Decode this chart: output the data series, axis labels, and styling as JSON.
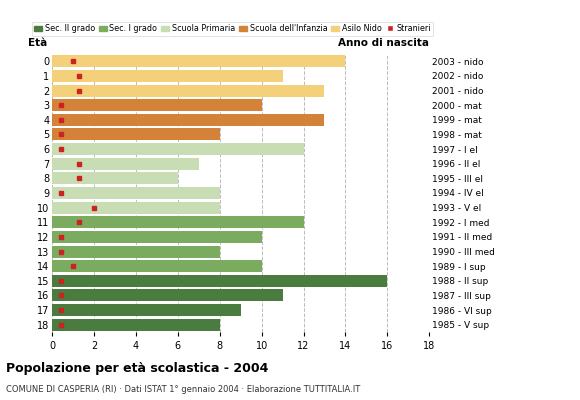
{
  "ages": [
    0,
    1,
    2,
    3,
    4,
    5,
    6,
    7,
    8,
    9,
    10,
    11,
    12,
    13,
    14,
    15,
    16,
    17,
    18
  ],
  "years": [
    "2003 - nido",
    "2002 - nido",
    "2001 - nido",
    "2000 - mat",
    "1999 - mat",
    "1998 - mat",
    "1997 - I el",
    "1996 - II el",
    "1995 - III el",
    "1994 - IV el",
    "1993 - V el",
    "1992 - I med",
    "1991 - II med",
    "1990 - III med",
    "1989 - I sup",
    "1988 - II sup",
    "1987 - III sup",
    "1986 - VI sup",
    "1985 - V sup"
  ],
  "bar_values": [
    14,
    11,
    13,
    10,
    13,
    8,
    12,
    7,
    6,
    8,
    8,
    12,
    10,
    8,
    10,
    16,
    11,
    9,
    8
  ],
  "bar_colors": [
    "#f5d07a",
    "#f5d07a",
    "#f5d07a",
    "#d4823a",
    "#d4823a",
    "#d4823a",
    "#c8ddb4",
    "#c8ddb4",
    "#c8ddb4",
    "#c8ddb4",
    "#c8ddb4",
    "#7aab5e",
    "#7aab5e",
    "#7aab5e",
    "#7aab5e",
    "#4a7c3f",
    "#4a7c3f",
    "#4a7c3f",
    "#4a7c3f"
  ],
  "stranieri_values": [
    1.0,
    1.3,
    1.3,
    0.4,
    0.4,
    0.4,
    0.4,
    1.3,
    1.3,
    0.4,
    2.0,
    1.3,
    0.4,
    0.4,
    1.0,
    0.4,
    0.4,
    0.4,
    0.4
  ],
  "title": "Popolazione per età scolastica - 2004",
  "subtitle": "COMUNE DI CASPERIA (RI) · Dati ISTAT 1° gennaio 2004 · Elaborazione TUTTITALIA.IT",
  "ylabel_left": "Età",
  "ylabel_right": "Anno di nascita",
  "xlim": [
    0,
    18
  ],
  "xticks": [
    0,
    2,
    4,
    6,
    8,
    10,
    12,
    14,
    16,
    18
  ],
  "legend_labels": [
    "Sec. II grado",
    "Sec. I grado",
    "Scuola Primaria",
    "Scuola dell'Infanzia",
    "Asilo Nido",
    "Stranieri"
  ],
  "legend_colors": [
    "#4a7c3f",
    "#7aab5e",
    "#c8ddb4",
    "#d4823a",
    "#f5d07a",
    "#cc2222"
  ],
  "bg_color": "#ffffff",
  "bar_height": 0.82,
  "grid_color": "#bbbbbb"
}
